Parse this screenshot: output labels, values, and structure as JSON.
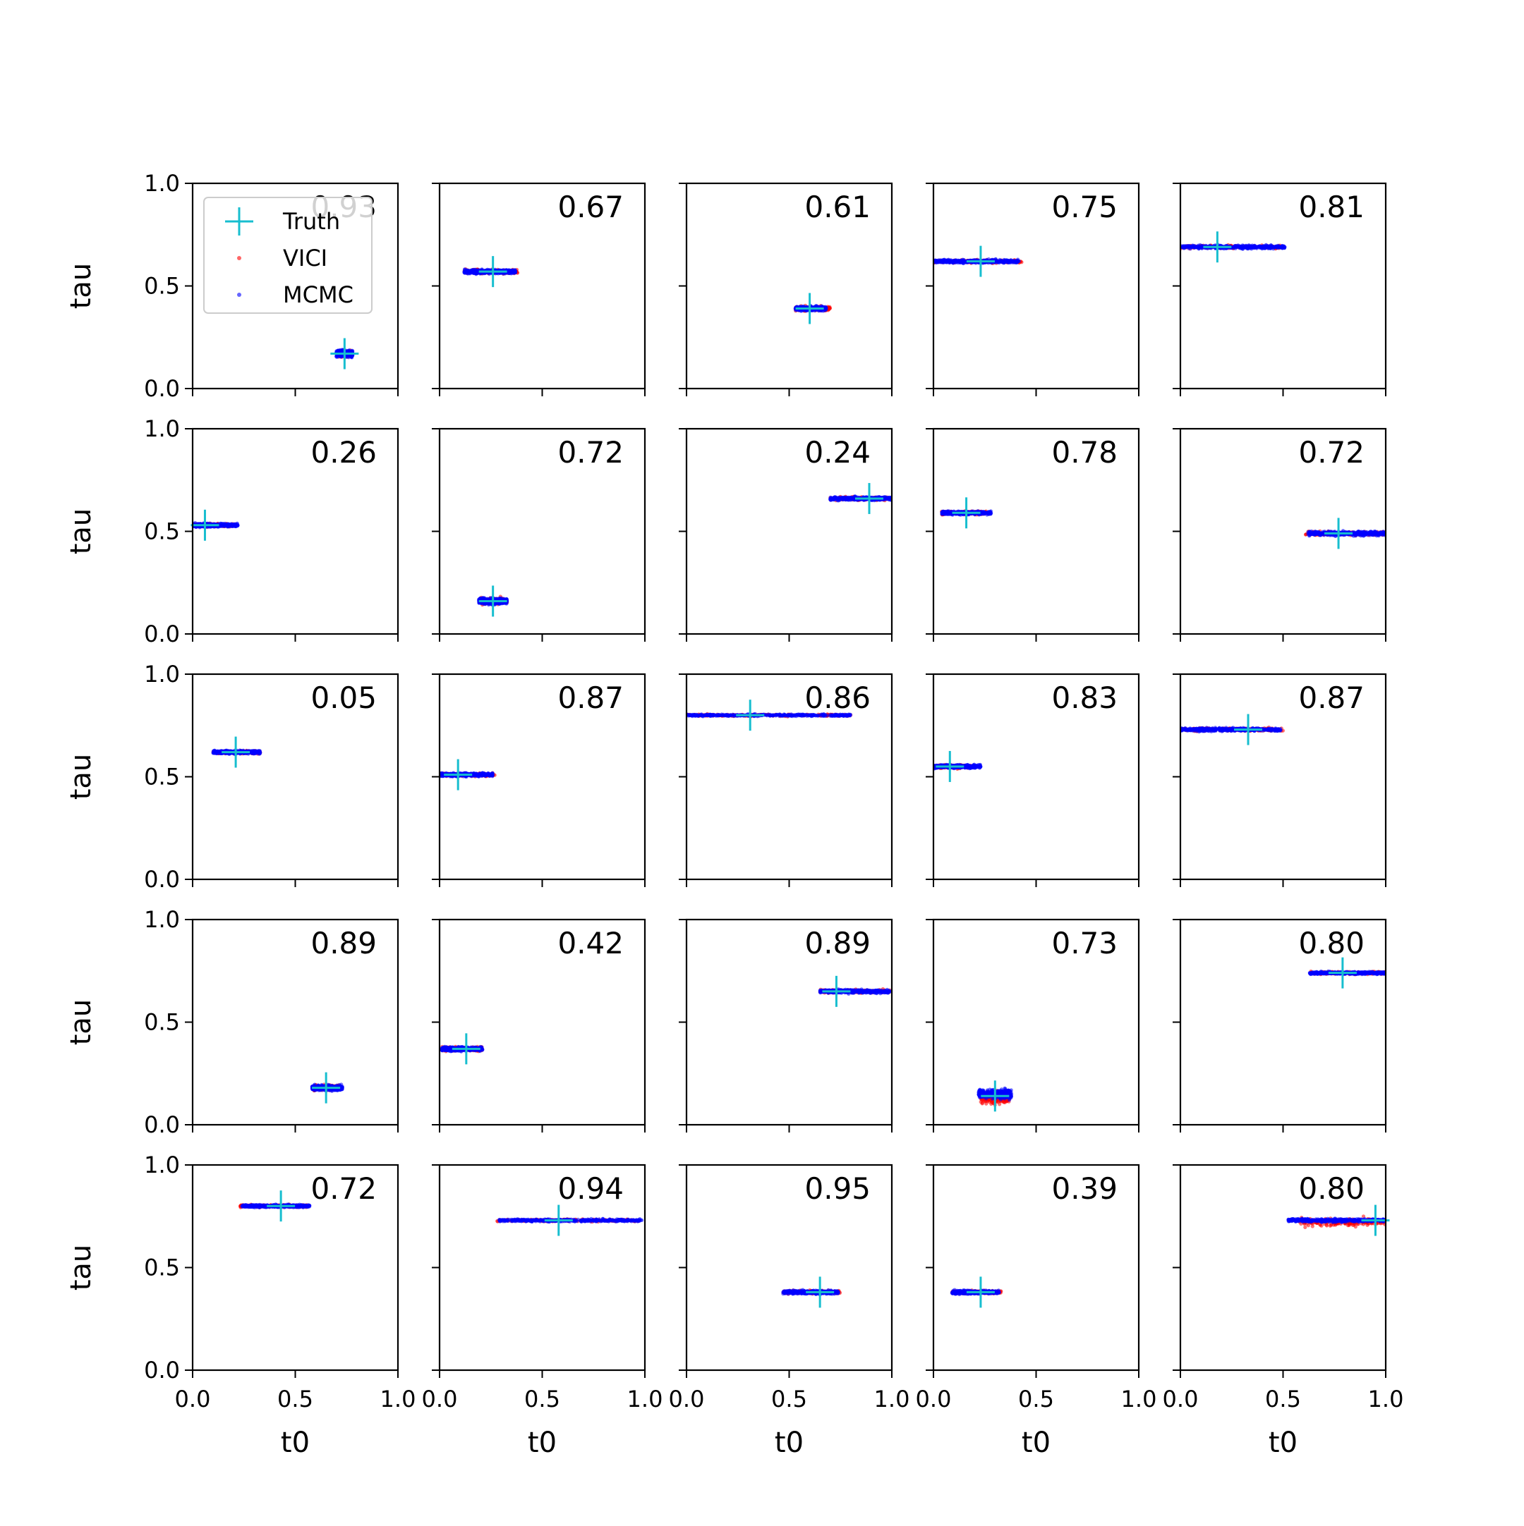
{
  "chart_data": {
    "type": "scatter",
    "rows": 5,
    "cols": 5,
    "xlabel": "t0",
    "ylabel": "tau",
    "xlim": [
      0.0,
      1.0
    ],
    "ylim": [
      0.0,
      1.0
    ],
    "xticks": [
      "0.0",
      "0.5",
      "1.0"
    ],
    "yticks": [
      "0.0",
      "0.5",
      "1.0"
    ],
    "grid": false,
    "legend": {
      "location": "upper-left of first panel",
      "entries": [
        {
          "name": "Truth",
          "marker": "plus",
          "color": "#17becf"
        },
        {
          "name": "VICI",
          "marker": "dot",
          "color": "#ff0000"
        },
        {
          "name": "MCMC",
          "marker": "dot",
          "color": "#0000ff"
        }
      ]
    },
    "panels": [
      {
        "label": "0.93",
        "truth": [
          0.74,
          0.17
        ],
        "vici": [
          0.71,
          0.77,
          0.17,
          0.015
        ],
        "mcmc": [
          0.7,
          0.78,
          0.17,
          0.015
        ]
      },
      {
        "label": "0.67",
        "truth": [
          0.26,
          0.57
        ],
        "vici": [
          0.12,
          0.38,
          0.57,
          0.01
        ],
        "mcmc": [
          0.12,
          0.37,
          0.57,
          0.01
        ]
      },
      {
        "label": "0.61",
        "truth": [
          0.6,
          0.39
        ],
        "vici": [
          0.53,
          0.7,
          0.39,
          0.01
        ],
        "mcmc": [
          0.53,
          0.68,
          0.39,
          0.01
        ]
      },
      {
        "label": "0.75",
        "truth": [
          0.23,
          0.62
        ],
        "vici": [
          0.0,
          0.43,
          0.62,
          0.008
        ],
        "mcmc": [
          0.0,
          0.42,
          0.62,
          0.008
        ]
      },
      {
        "label": "0.81",
        "truth": [
          0.18,
          0.69
        ],
        "vici": [
          0.0,
          0.5,
          0.69,
          0.008
        ],
        "mcmc": [
          0.0,
          0.51,
          0.69,
          0.008
        ]
      },
      {
        "label": "0.26",
        "truth": [
          0.06,
          0.53
        ],
        "vici": [
          0.0,
          0.21,
          0.53,
          0.008
        ],
        "mcmc": [
          0.0,
          0.22,
          0.53,
          0.008
        ]
      },
      {
        "label": "0.72",
        "truth": [
          0.26,
          0.16
        ],
        "vici": [
          0.2,
          0.33,
          0.16,
          0.015
        ],
        "mcmc": [
          0.19,
          0.33,
          0.16,
          0.015
        ]
      },
      {
        "label": "0.24",
        "truth": [
          0.89,
          0.66
        ],
        "vici": [
          0.7,
          1.0,
          0.66,
          0.008
        ],
        "mcmc": [
          0.7,
          1.0,
          0.66,
          0.008
        ]
      },
      {
        "label": "0.78",
        "truth": [
          0.16,
          0.59
        ],
        "vici": [
          0.04,
          0.27,
          0.59,
          0.008
        ],
        "mcmc": [
          0.04,
          0.28,
          0.59,
          0.008
        ]
      },
      {
        "label": "0.72",
        "truth": [
          0.77,
          0.49
        ],
        "vici": [
          0.61,
          1.0,
          0.49,
          0.01
        ],
        "mcmc": [
          0.62,
          1.0,
          0.49,
          0.01
        ]
      },
      {
        "label": "0.05",
        "truth": [
          0.21,
          0.62
        ],
        "vici": [
          0.1,
          0.33,
          0.62,
          0.008
        ],
        "mcmc": [
          0.1,
          0.33,
          0.62,
          0.008
        ]
      },
      {
        "label": "0.87",
        "truth": [
          0.09,
          0.51
        ],
        "vici": [
          0.0,
          0.27,
          0.51,
          0.008
        ],
        "mcmc": [
          0.0,
          0.26,
          0.51,
          0.008
        ]
      },
      {
        "label": "0.86",
        "truth": [
          0.31,
          0.8
        ],
        "vici": [
          0.0,
          0.8,
          0.8,
          0.005
        ],
        "mcmc": [
          0.0,
          0.8,
          0.8,
          0.005
        ]
      },
      {
        "label": "0.83",
        "truth": [
          0.08,
          0.55
        ],
        "vici": [
          0.0,
          0.19,
          0.55,
          0.008
        ],
        "mcmc": [
          0.0,
          0.23,
          0.55,
          0.008
        ]
      },
      {
        "label": "0.87",
        "truth": [
          0.33,
          0.73
        ],
        "vici": [
          0.0,
          0.5,
          0.73,
          0.008
        ],
        "mcmc": [
          0.0,
          0.49,
          0.73,
          0.008
        ]
      },
      {
        "label": "0.89",
        "truth": [
          0.65,
          0.18
        ],
        "vici": [
          0.59,
          0.72,
          0.18,
          0.012
        ],
        "mcmc": [
          0.58,
          0.73,
          0.18,
          0.012
        ]
      },
      {
        "label": "0.42",
        "truth": [
          0.13,
          0.37
        ],
        "vici": [
          0.01,
          0.21,
          0.37,
          0.01
        ],
        "mcmc": [
          0.01,
          0.21,
          0.37,
          0.01
        ]
      },
      {
        "label": "0.89",
        "truth": [
          0.73,
          0.65
        ],
        "vici": [
          0.65,
          0.99,
          0.65,
          0.008
        ],
        "mcmc": [
          0.65,
          0.99,
          0.65,
          0.008
        ]
      },
      {
        "label": "0.73",
        "truth": [
          0.3,
          0.14
        ],
        "vici": [
          0.23,
          0.37,
          0.13,
          0.03
        ],
        "mcmc": [
          0.22,
          0.38,
          0.15,
          0.02
        ]
      },
      {
        "label": "0.80",
        "truth": [
          0.79,
          0.74
        ],
        "vici": [
          0.63,
          1.0,
          0.74,
          0.006
        ],
        "mcmc": [
          0.63,
          1.0,
          0.74,
          0.006
        ]
      },
      {
        "label": "0.72",
        "truth": [
          0.43,
          0.8
        ],
        "vici": [
          0.23,
          0.56,
          0.8,
          0.006
        ],
        "mcmc": [
          0.24,
          0.57,
          0.8,
          0.006
        ]
      },
      {
        "label": "0.94",
        "truth": [
          0.58,
          0.73
        ],
        "vici": [
          0.28,
          0.97,
          0.73,
          0.006
        ],
        "mcmc": [
          0.29,
          0.99,
          0.73,
          0.006
        ]
      },
      {
        "label": "0.95",
        "truth": [
          0.65,
          0.38
        ],
        "vici": [
          0.47,
          0.75,
          0.38,
          0.008
        ],
        "mcmc": [
          0.47,
          0.74,
          0.38,
          0.008
        ]
      },
      {
        "label": "0.39",
        "truth": [
          0.23,
          0.38
        ],
        "vici": [
          0.09,
          0.33,
          0.38,
          0.008
        ],
        "mcmc": [
          0.09,
          0.32,
          0.38,
          0.008
        ]
      },
      {
        "label": "0.80",
        "truth": [
          0.95,
          0.73
        ],
        "vici": [
          0.58,
          1.0,
          0.72,
          0.02
        ],
        "mcmc": [
          0.52,
          1.0,
          0.73,
          0.008
        ]
      }
    ]
  }
}
